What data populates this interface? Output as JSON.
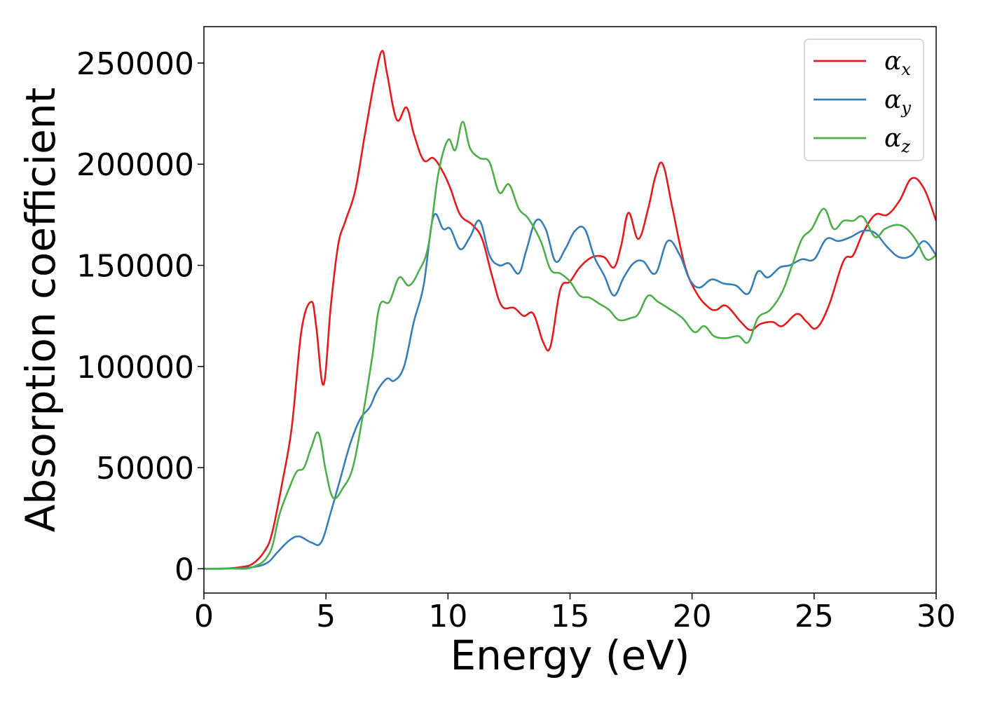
{
  "chart_data": {
    "type": "line",
    "xlabel": "Energy (eV)",
    "ylabel": "Absorption coefficient",
    "xlim": [
      0,
      30
    ],
    "ylim": [
      -12000,
      268000
    ],
    "xticks": [
      0,
      5,
      10,
      15,
      20,
      25,
      30
    ],
    "yticks": [
      0,
      50000,
      100000,
      150000,
      200000,
      250000
    ],
    "grid": false,
    "legend_position": "top-right",
    "series": [
      {
        "name": "α_x",
        "symbol": "α",
        "subscript": "x",
        "color": "#e41a1c",
        "points": [
          [
            0,
            0
          ],
          [
            1,
            200
          ],
          [
            1.5,
            800
          ],
          [
            2,
            2500
          ],
          [
            2.5,
            9000
          ],
          [
            2.8,
            18000
          ],
          [
            3.2,
            42000
          ],
          [
            3.6,
            70000
          ],
          [
            4.0,
            118000
          ],
          [
            4.4,
            132000
          ],
          [
            4.6,
            120000
          ],
          [
            4.9,
            91000
          ],
          [
            5.2,
            130000
          ],
          [
            5.5,
            160000
          ],
          [
            5.8,
            172000
          ],
          [
            6.2,
            187000
          ],
          [
            6.6,
            215000
          ],
          [
            7.0,
            242000
          ],
          [
            7.3,
            256000
          ],
          [
            7.5,
            245000
          ],
          [
            7.9,
            222000
          ],
          [
            8.3,
            228000
          ],
          [
            8.6,
            215000
          ],
          [
            9.0,
            202000
          ],
          [
            9.4,
            203000
          ],
          [
            9.8,
            196000
          ],
          [
            10.1,
            188000
          ],
          [
            10.5,
            175000
          ],
          [
            11.0,
            170000
          ],
          [
            11.4,
            163000
          ],
          [
            11.8,
            145000
          ],
          [
            12.2,
            130000
          ],
          [
            12.7,
            129000
          ],
          [
            13.1,
            125000
          ],
          [
            13.5,
            126000
          ],
          [
            13.9,
            112000
          ],
          [
            14.2,
            110000
          ],
          [
            14.6,
            138000
          ],
          [
            15.0,
            142000
          ],
          [
            15.4,
            149000
          ],
          [
            15.9,
            154000
          ],
          [
            16.4,
            154000
          ],
          [
            16.8,
            149000
          ],
          [
            17.1,
            160000
          ],
          [
            17.4,
            176000
          ],
          [
            17.8,
            163000
          ],
          [
            18.2,
            178000
          ],
          [
            18.5,
            194000
          ],
          [
            18.8,
            200000
          ],
          [
            19.2,
            178000
          ],
          [
            19.7,
            150000
          ],
          [
            20.2,
            136000
          ],
          [
            20.7,
            129000
          ],
          [
            21.0,
            128000
          ],
          [
            21.4,
            130000
          ],
          [
            22.0,
            122000
          ],
          [
            22.4,
            118000
          ],
          [
            22.8,
            121000
          ],
          [
            23.3,
            122000
          ],
          [
            23.7,
            120000
          ],
          [
            24.3,
            126000
          ],
          [
            24.7,
            122000
          ],
          [
            25.1,
            119000
          ],
          [
            25.6,
            130000
          ],
          [
            26.2,
            152000
          ],
          [
            26.6,
            155000
          ],
          [
            27.0,
            166000
          ],
          [
            27.5,
            175000
          ],
          [
            28.0,
            175000
          ],
          [
            28.5,
            182000
          ],
          [
            29.0,
            193000
          ],
          [
            29.5,
            188000
          ],
          [
            30,
            172000
          ]
        ]
      },
      {
        "name": "α_y",
        "symbol": "α",
        "subscript": "y",
        "color": "#377eb8",
        "points": [
          [
            0,
            0
          ],
          [
            1,
            100
          ],
          [
            2,
            800
          ],
          [
            2.6,
            3000
          ],
          [
            3.0,
            8000
          ],
          [
            3.5,
            14000
          ],
          [
            3.9,
            16000
          ],
          [
            4.4,
            13000
          ],
          [
            4.8,
            13000
          ],
          [
            5.2,
            28000
          ],
          [
            5.6,
            45000
          ],
          [
            6.0,
            62000
          ],
          [
            6.4,
            74000
          ],
          [
            6.8,
            80000
          ],
          [
            7.1,
            88000
          ],
          [
            7.5,
            94000
          ],
          [
            7.8,
            93000
          ],
          [
            8.2,
            100000
          ],
          [
            8.6,
            122000
          ],
          [
            9.0,
            140000
          ],
          [
            9.4,
            174000
          ],
          [
            9.8,
            168000
          ],
          [
            10.1,
            168000
          ],
          [
            10.5,
            158000
          ],
          [
            10.9,
            164000
          ],
          [
            11.3,
            172000
          ],
          [
            11.7,
            155000
          ],
          [
            12.1,
            150000
          ],
          [
            12.5,
            151000
          ],
          [
            12.9,
            146000
          ],
          [
            13.2,
            157000
          ],
          [
            13.6,
            172000
          ],
          [
            14.0,
            168000
          ],
          [
            14.4,
            152000
          ],
          [
            14.8,
            158000
          ],
          [
            15.2,
            167000
          ],
          [
            15.6,
            168000
          ],
          [
            16.0,
            154000
          ],
          [
            16.4,
            145000
          ],
          [
            16.8,
            135000
          ],
          [
            17.2,
            144000
          ],
          [
            17.6,
            151000
          ],
          [
            18.0,
            152000
          ],
          [
            18.5,
            146000
          ],
          [
            19.0,
            162000
          ],
          [
            19.5,
            155000
          ],
          [
            19.9,
            143000
          ],
          [
            20.3,
            139000
          ],
          [
            20.8,
            143000
          ],
          [
            21.3,
            141000
          ],
          [
            21.8,
            140000
          ],
          [
            22.3,
            136000
          ],
          [
            22.7,
            147000
          ],
          [
            23.1,
            144000
          ],
          [
            23.6,
            149000
          ],
          [
            24.0,
            150000
          ],
          [
            24.5,
            153000
          ],
          [
            25.0,
            153000
          ],
          [
            25.5,
            163000
          ],
          [
            26.0,
            162000
          ],
          [
            26.5,
            164000
          ],
          [
            27.0,
            167000
          ],
          [
            27.5,
            166000
          ],
          [
            28.0,
            159000
          ],
          [
            28.5,
            154000
          ],
          [
            29.0,
            155000
          ],
          [
            29.5,
            162000
          ],
          [
            30,
            155000
          ]
        ]
      },
      {
        "name": "α_z",
        "symbol": "α",
        "subscript": "z",
        "color": "#4daf4a",
        "points": [
          [
            0,
            0
          ],
          [
            1,
            100
          ],
          [
            2,
            800
          ],
          [
            2.7,
            8000
          ],
          [
            3.1,
            27000
          ],
          [
            3.5,
            40000
          ],
          [
            3.8,
            48000
          ],
          [
            4.1,
            50000
          ],
          [
            4.4,
            60000
          ],
          [
            4.7,
            67000
          ],
          [
            5.0,
            48000
          ],
          [
            5.3,
            35000
          ],
          [
            5.7,
            40000
          ],
          [
            6.1,
            50000
          ],
          [
            6.5,
            75000
          ],
          [
            6.9,
            105000
          ],
          [
            7.2,
            130000
          ],
          [
            7.6,
            132000
          ],
          [
            8.0,
            144000
          ],
          [
            8.4,
            140000
          ],
          [
            8.8,
            147000
          ],
          [
            9.2,
            160000
          ],
          [
            9.6,
            195000
          ],
          [
            10.0,
            212000
          ],
          [
            10.3,
            207000
          ],
          [
            10.6,
            221000
          ],
          [
            10.9,
            208000
          ],
          [
            11.3,
            203000
          ],
          [
            11.7,
            201000
          ],
          [
            12.1,
            186000
          ],
          [
            12.5,
            190000
          ],
          [
            12.9,
            178000
          ],
          [
            13.3,
            173000
          ],
          [
            13.8,
            162000
          ],
          [
            14.2,
            148000
          ],
          [
            14.6,
            146000
          ],
          [
            15.0,
            142000
          ],
          [
            15.4,
            135000
          ],
          [
            15.8,
            134000
          ],
          [
            16.2,
            131000
          ],
          [
            16.6,
            128000
          ],
          [
            17.0,
            123000
          ],
          [
            17.5,
            124000
          ],
          [
            17.8,
            126000
          ],
          [
            18.2,
            135000
          ],
          [
            18.6,
            132000
          ],
          [
            19.0,
            129000
          ],
          [
            19.6,
            124000
          ],
          [
            20.1,
            117000
          ],
          [
            20.5,
            120000
          ],
          [
            20.9,
            115000
          ],
          [
            21.4,
            114000
          ],
          [
            21.9,
            115000
          ],
          [
            22.3,
            112000
          ],
          [
            22.7,
            124000
          ],
          [
            23.2,
            128000
          ],
          [
            23.7,
            137000
          ],
          [
            24.1,
            150000
          ],
          [
            24.5,
            163000
          ],
          [
            24.9,
            168000
          ],
          [
            25.4,
            178000
          ],
          [
            25.8,
            168000
          ],
          [
            26.2,
            172000
          ],
          [
            26.6,
            172000
          ],
          [
            27.0,
            174000
          ],
          [
            27.5,
            164000
          ],
          [
            27.9,
            168000
          ],
          [
            28.4,
            170000
          ],
          [
            28.8,
            168000
          ],
          [
            29.2,
            162000
          ],
          [
            29.6,
            153000
          ],
          [
            30,
            155000
          ]
        ]
      }
    ]
  }
}
